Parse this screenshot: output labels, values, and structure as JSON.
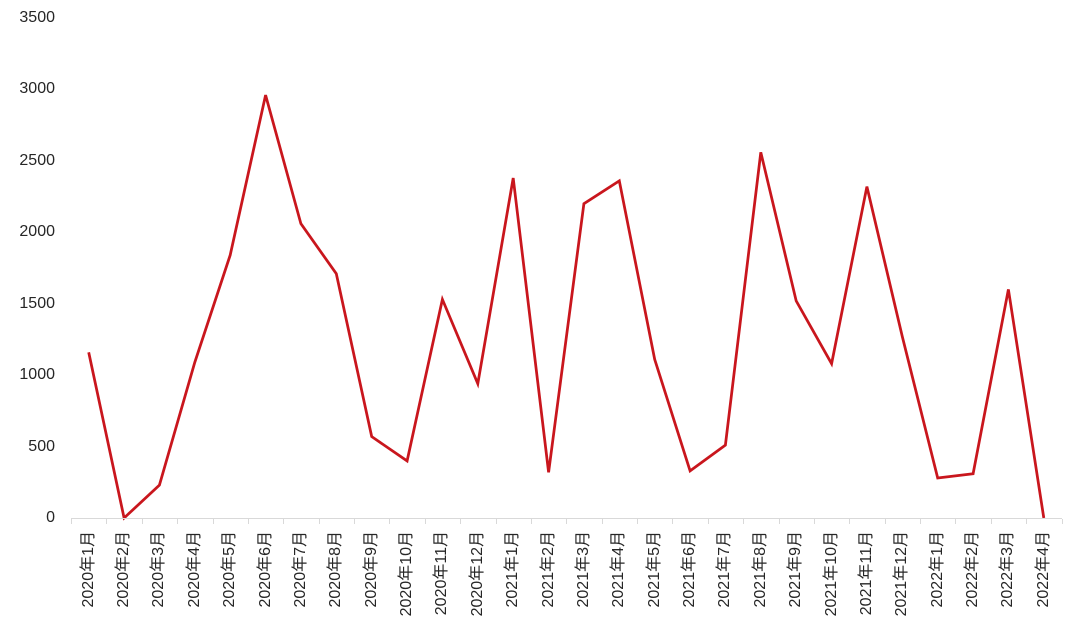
{
  "chart_data": {
    "type": "line",
    "title": "",
    "xlabel": "",
    "ylabel": "",
    "categories": [
      "2020年1月",
      "2020年2月",
      "2020年3月",
      "2020年4月",
      "2020年5月",
      "2020年6月",
      "2020年7月",
      "2020年8月",
      "2020年9月",
      "2020年10月",
      "2020年11月",
      "2020年12月",
      "2021年1月",
      "2021年2月",
      "2021年3月",
      "2021年4月",
      "2021年5月",
      "2021年6月",
      "2021年7月",
      "2021年8月",
      "2021年9月",
      "2021年10月",
      "2021年11月",
      "2021年12月",
      "2022年1月",
      "2022年2月",
      "2022年3月",
      "2022年4月"
    ],
    "values": [
      1160,
      0,
      230,
      1090,
      1840,
      2960,
      2060,
      1710,
      570,
      400,
      1530,
      940,
      2380,
      320,
      2200,
      2360,
      1110,
      330,
      510,
      2560,
      1520,
      1080,
      2320,
      1270,
      280,
      310,
      1600,
      0
    ],
    "ylim": [
      0,
      3500
    ],
    "yticks": [
      0,
      500,
      1000,
      1500,
      2000,
      2500,
      3000,
      3500
    ],
    "grid": false,
    "legend": "none",
    "line_color": "#c9161d",
    "axis_color": "#d9d9d9",
    "text_color": "#262626",
    "background": "#ffffff"
  }
}
